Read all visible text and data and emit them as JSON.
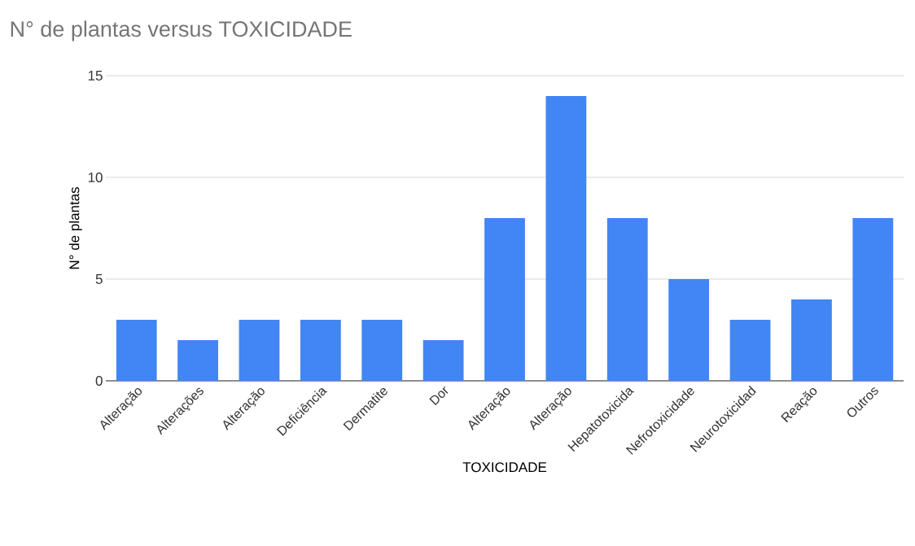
{
  "chart_data": {
    "type": "bar",
    "title": "N° de plantas versus TOXICIDADE",
    "xlabel": "TOXICIDADE",
    "ylabel": "N° de plantas",
    "categories": [
      "Alteração",
      "Alterações",
      "Alteração",
      "Deficiência",
      "Dermatite",
      "Dor",
      "Alteração",
      "Alteração",
      "Hepatotoxicida",
      "Nefrotoxicidade",
      "Neurotoxicidad",
      "Reação",
      "Outros"
    ],
    "values": [
      3,
      2,
      3,
      3,
      3,
      2,
      8,
      14,
      8,
      5,
      3,
      4,
      8
    ],
    "color": "#4285f4",
    "ylim": [
      0,
      15
    ],
    "yticks": [
      0,
      5,
      10,
      15
    ],
    "grid": "y"
  }
}
